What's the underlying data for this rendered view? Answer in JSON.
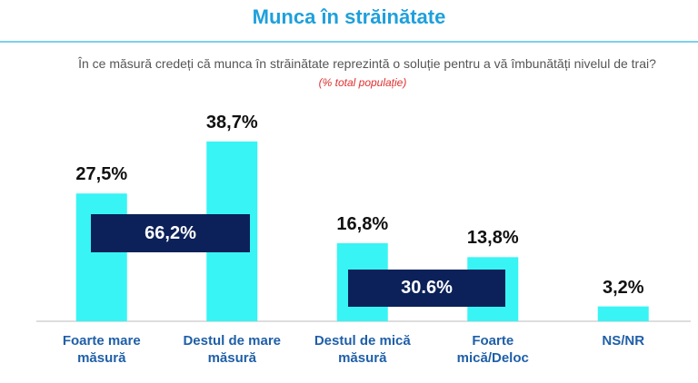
{
  "chart_data": {
    "type": "bar",
    "title": "Munca în străinătate",
    "subtitle": "În ce măsură credeți că munca în străinătate reprezintă o soluție pentru a vă îmbunătăți nivelul de trai?",
    "note": "(% total populație)",
    "categories": [
      "Foarte mare măsură",
      "Destul de mare măsură",
      "Destul de mică măsură",
      "Foarte mică/Deloc",
      "NS/NR"
    ],
    "values": [
      27.5,
      38.7,
      16.8,
      13.8,
      3.2
    ],
    "value_labels": [
      "27,5%",
      "38,7%",
      "16,8%",
      "13,8%",
      "3,2%"
    ],
    "color": "#38f4f4",
    "annotations": [
      "66,2%",
      "30.6%"
    ]
  }
}
